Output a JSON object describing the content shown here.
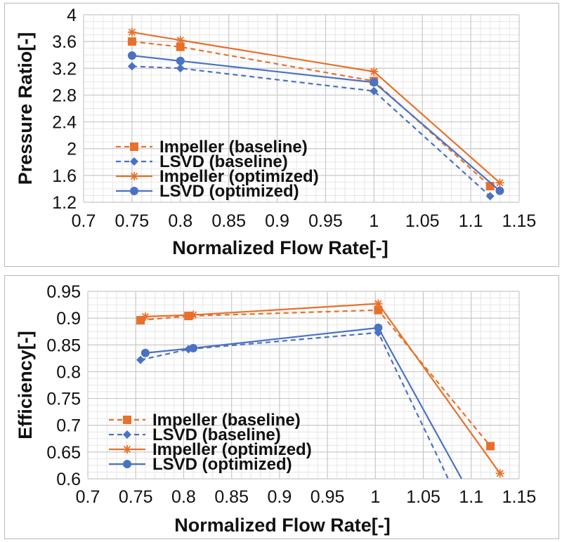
{
  "colors": {
    "orange": "#e8702a",
    "blue": "#4a72c4",
    "grid_major": "#c8c8c8",
    "grid_minor": "#e6e6e6"
  },
  "chart_data": [
    {
      "type": "line",
      "ylabel": "Pressure Ratio[-]",
      "xlabel": "Normalized Flow Rate[-]",
      "xlim": [
        0.7,
        1.15
      ],
      "ylim": [
        1.2,
        4.0
      ],
      "x_ticks": [
        "0.7",
        "0.75",
        "0.8",
        "0.85",
        "0.9",
        "0.95",
        "1",
        "1.05",
        "1.1",
        "1.15"
      ],
      "y_ticks": [
        "1.2",
        "1.6",
        "2",
        "2.4",
        "2.8",
        "3.2",
        "3.6",
        "4"
      ],
      "grid": true,
      "legend_position": "bottom-left",
      "series": [
        {
          "name": "Impeller (baseline)",
          "color": "orange",
          "dash": "dashed",
          "marker": "square",
          "x": [
            0.75,
            0.8,
            1.0,
            1.12
          ],
          "y": [
            3.6,
            3.52,
            3.01,
            1.44
          ]
        },
        {
          "name": "LSVD (baseline)",
          "color": "blue",
          "dash": "dashed",
          "marker": "diamond",
          "x": [
            0.75,
            0.8,
            1.0,
            1.12
          ],
          "y": [
            3.23,
            3.2,
            2.86,
            1.29
          ]
        },
        {
          "name": "Impeller (optimized)",
          "color": "orange",
          "dash": "solid",
          "marker": "star",
          "x": [
            0.75,
            0.8,
            1.0,
            1.13
          ],
          "y": [
            3.74,
            3.62,
            3.15,
            1.49
          ]
        },
        {
          "name": "LSVD (optimized)",
          "color": "blue",
          "dash": "solid",
          "marker": "circle",
          "x": [
            0.75,
            0.8,
            1.0,
            1.13
          ],
          "y": [
            3.39,
            3.31,
            2.99,
            1.37
          ]
        }
      ]
    },
    {
      "type": "line",
      "ylabel": "Efficiency[-]",
      "xlabel": "Normalized Flow Rate[-]",
      "xlim": [
        0.7,
        1.15
      ],
      "ylim": [
        0.6,
        0.95
      ],
      "x_ticks": [
        "0.7",
        "0.75",
        "0.8",
        "0.85",
        "0.9",
        "0.95",
        "1",
        "1.05",
        "1.1",
        "1.15"
      ],
      "y_ticks": [
        "0.6",
        "0.65",
        "0.7",
        "0.75",
        "0.8",
        "0.85",
        "0.9",
        "0.95"
      ],
      "grid": true,
      "legend_position": "bottom-left",
      "series": [
        {
          "name": "Impeller (baseline)",
          "color": "orange",
          "dash": "dashed",
          "marker": "square",
          "x": [
            0.755,
            0.805,
            1.003,
            1.12
          ],
          "y": [
            0.896,
            0.904,
            0.915,
            0.661
          ]
        },
        {
          "name": "LSVD (baseline)",
          "color": "blue",
          "dash": "dashed",
          "marker": "diamond",
          "x": [
            0.755,
            0.805,
            1.003,
            1.076
          ],
          "y": [
            0.822,
            0.842,
            0.873,
            0.6
          ]
        },
        {
          "name": "Impeller (optimized)",
          "color": "orange",
          "dash": "solid",
          "marker": "star",
          "x": [
            0.76,
            0.81,
            1.003,
            1.13
          ],
          "y": [
            0.903,
            0.906,
            0.927,
            0.61
          ]
        },
        {
          "name": "LSVD (optimized)",
          "color": "blue",
          "dash": "solid",
          "marker": "circle",
          "x": [
            0.76,
            0.81,
            1.003,
            1.09
          ],
          "y": [
            0.835,
            0.844,
            0.882,
            0.6
          ]
        }
      ]
    }
  ]
}
